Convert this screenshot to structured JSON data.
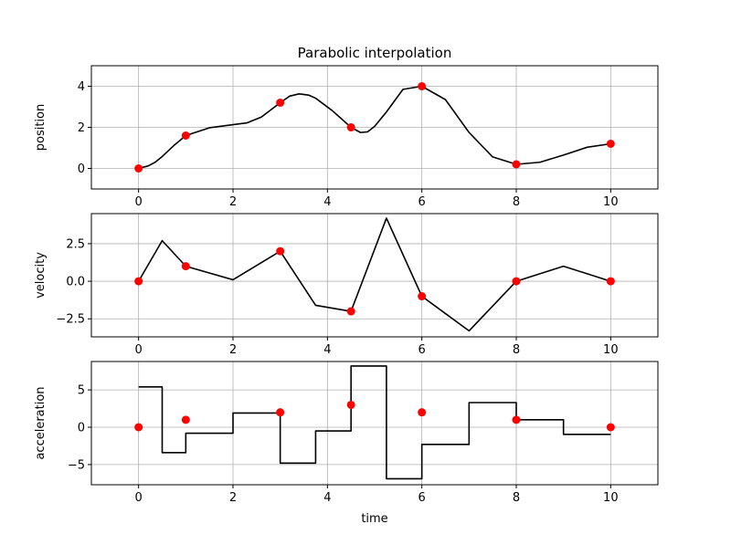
{
  "title": "Parabolic interpolation",
  "xlabel": "time",
  "colors": {
    "curve": "#000000",
    "points": "#ff0000",
    "grid": "#b0b0b0",
    "spine": "#000000"
  },
  "chart_data": [
    {
      "type": "line",
      "name": "position-panel",
      "ylabel": "position",
      "xlim": [
        -1,
        11
      ],
      "ylim": [
        -1,
        5
      ],
      "xticks": [
        0,
        2,
        4,
        6,
        8,
        10
      ],
      "yticks": [
        0,
        2,
        4
      ],
      "ytick_labels": [
        "0",
        "2",
        "4"
      ],
      "grid": true,
      "curve": {
        "x": [
          0,
          0.2,
          0.35,
          0.5,
          0.75,
          1,
          1.5,
          2,
          2.3,
          2.6,
          3,
          3.2,
          3.4,
          3.6,
          3.75,
          4.1,
          4.5,
          4.7,
          4.85,
          5.0,
          5.25,
          5.6,
          6,
          6.5,
          7,
          7.5,
          8,
          8.5,
          9,
          9.5,
          10
        ],
        "y": [
          0,
          0.12,
          0.3,
          0.58,
          1.12,
          1.6,
          1.98,
          2.13,
          2.22,
          2.5,
          3.2,
          3.52,
          3.63,
          3.57,
          3.42,
          2.82,
          2.0,
          1.75,
          1.78,
          2.05,
          2.75,
          3.85,
          4.0,
          3.35,
          1.75,
          0.56,
          0.2,
          0.3,
          0.65,
          1.03,
          1.2
        ]
      },
      "points": {
        "x": [
          0,
          1,
          3,
          4.5,
          6,
          8,
          10
        ],
        "y": [
          0,
          1.6,
          3.2,
          2,
          4,
          0.2,
          1.2
        ]
      }
    },
    {
      "type": "line",
      "name": "velocity-panel",
      "ylabel": "velocity",
      "xlim": [
        -1,
        11
      ],
      "ylim": [
        -3.7,
        4.5
      ],
      "xticks": [
        0,
        2,
        4,
        6,
        8,
        10
      ],
      "yticks": [
        -2.5,
        0,
        2.5
      ],
      "ytick_labels": [
        "−2.5",
        "0.0",
        "2.5"
      ],
      "grid": true,
      "curve": {
        "x": [
          0,
          0.5,
          1,
          2,
          3,
          3.75,
          4.5,
          5.25,
          6,
          7,
          8,
          9,
          10
        ],
        "y": [
          0,
          2.7,
          1.0,
          0.1,
          2.0,
          -1.6,
          -2.0,
          4.2,
          -1.0,
          -3.3,
          0,
          1.0,
          0
        ]
      },
      "points": {
        "x": [
          0,
          1,
          3,
          4.5,
          6,
          8,
          10
        ],
        "y": [
          0,
          1,
          2,
          -2,
          -1,
          0,
          0
        ]
      }
    },
    {
      "type": "line",
      "name": "acceleration-panel",
      "ylabel": "acceleration",
      "xlim": [
        -1,
        11
      ],
      "ylim": [
        -7.7,
        8.8
      ],
      "xticks": [
        0,
        2,
        4,
        6,
        8,
        10
      ],
      "yticks": [
        -5,
        0,
        5
      ],
      "ytick_labels": [
        "−5",
        "0",
        "5"
      ],
      "grid": true,
      "curve": {
        "x": [
          0,
          0.5,
          0.5,
          1,
          1,
          2,
          2,
          3,
          3,
          3.75,
          3.75,
          4.5,
          4.5,
          5.25,
          5.25,
          6,
          6,
          7,
          7,
          8,
          8,
          9,
          9,
          10
        ],
        "y": [
          5.4,
          5.4,
          -3.4,
          -3.4,
          -0.8,
          -0.8,
          1.9,
          1.9,
          -4.8,
          -4.8,
          -0.5,
          -0.5,
          8.2,
          8.2,
          -6.9,
          -6.9,
          -2.3,
          -2.3,
          3.3,
          3.3,
          1.0,
          1.0,
          -0.95,
          -0.95
        ]
      },
      "points": {
        "x": [
          0,
          1,
          3,
          4.5,
          6,
          8,
          10
        ],
        "y": [
          0,
          1,
          2,
          3,
          2,
          1,
          0
        ]
      }
    }
  ]
}
